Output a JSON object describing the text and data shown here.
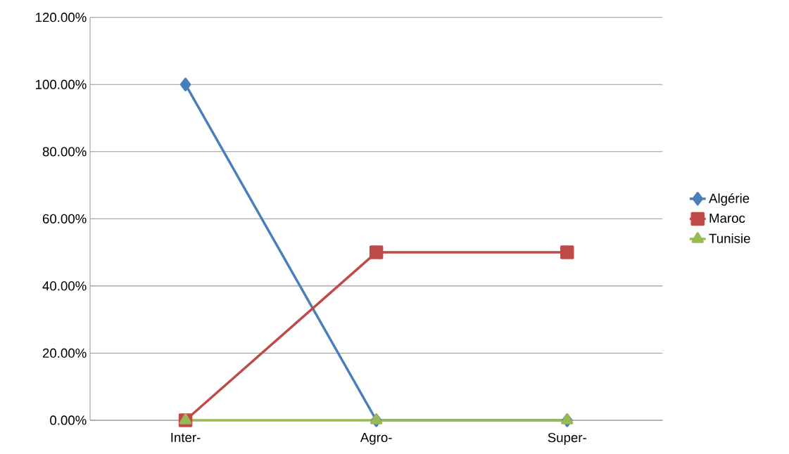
{
  "chart_data": {
    "type": "line",
    "categories": [
      "Inter-",
      "Agro-",
      "Super-"
    ],
    "series": [
      {
        "name": "Algérie",
        "color": "#4a7ebb",
        "values": [
          100,
          0,
          0
        ],
        "marker": "diamond"
      },
      {
        "name": "Maroc",
        "color": "#be4b48",
        "values": [
          0,
          50,
          50
        ],
        "marker": "square"
      },
      {
        "name": "Tunisie",
        "color": "#98b954",
        "values": [
          0,
          0,
          0
        ],
        "marker": "triangle"
      }
    ],
    "ylim": [
      0,
      120
    ],
    "yticks": [
      {
        "value": 0,
        "label": "0.00%"
      },
      {
        "value": 20,
        "label": "20.00%"
      },
      {
        "value": 40,
        "label": "40.00%"
      },
      {
        "value": 60,
        "label": "60.00%"
      },
      {
        "value": 80,
        "label": "80.00%"
      },
      {
        "value": 100,
        "label": "100.00%"
      },
      {
        "value": 120,
        "label": "120.00%"
      }
    ],
    "grid": "y",
    "legend": "right"
  }
}
